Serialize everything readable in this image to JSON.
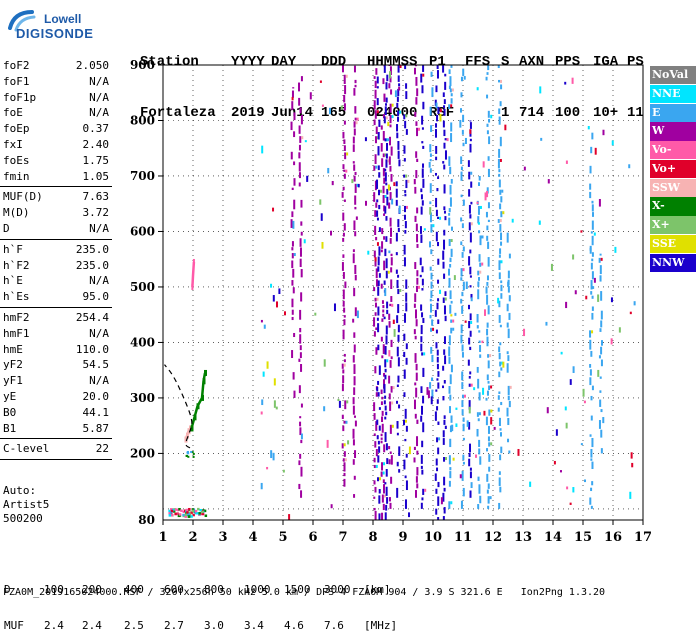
{
  "logo": {
    "line1": "Lowell",
    "line2": "DIGISONDE"
  },
  "header": {
    "row1": [
      "Station",
      "YYYY",
      "DAY",
      "DDD",
      "HHMMSS",
      "P1",
      "FFS",
      "S",
      "AXN",
      "PPS",
      "IGA",
      "PS"
    ],
    "row2": [
      "Fortaleza",
      "2019",
      "Jun14",
      "165",
      "024000",
      "RSF",
      "",
      "1",
      "714",
      "100",
      "10+",
      "11"
    ]
  },
  "params": [
    {
      "name": "foF2",
      "value": "2.050"
    },
    {
      "name": "foF1",
      "value": "N/A"
    },
    {
      "name": "foF1p",
      "value": "N/A"
    },
    {
      "name": "foE",
      "value": "N/A"
    },
    {
      "name": "foEp",
      "value": "0.37"
    },
    {
      "name": "fxI",
      "value": "2.40"
    },
    {
      "name": "foEs",
      "value": "1.75"
    },
    {
      "name": "fmin",
      "value": "1.05"
    },
    {
      "sep": true
    },
    {
      "name": "MUF(D)",
      "value": "7.63"
    },
    {
      "name": "M(D)",
      "value": "3.72"
    },
    {
      "name": "D",
      "value": "N/A"
    },
    {
      "sep": true
    },
    {
      "name": "h`F",
      "value": "235.0"
    },
    {
      "name": "h`F2",
      "value": "235.0"
    },
    {
      "name": "h`E",
      "value": "N/A"
    },
    {
      "name": "h`Es",
      "value": "95.0"
    },
    {
      "sep": true
    },
    {
      "name": "hmF2",
      "value": "254.4"
    },
    {
      "name": "hmF1",
      "value": "N/A"
    },
    {
      "name": "hmE",
      "value": "110.0"
    },
    {
      "name": "yF2",
      "value": "54.5"
    },
    {
      "name": "yF1",
      "value": "N/A"
    },
    {
      "name": "yE",
      "value": "20.0"
    },
    {
      "name": "B0",
      "value": "44.1"
    },
    {
      "name": "B1",
      "value": "5.87"
    },
    {
      "sep": true
    },
    {
      "name": "C-level",
      "value": "22"
    },
    {
      "sep": true
    }
  ],
  "auto": {
    "line1": "Auto:",
    "line2": "Artist5",
    "line3": "500200"
  },
  "legend": [
    {
      "label": "NoVal",
      "bg": "#808080",
      "fg": "#ffffff"
    },
    {
      "label": "NNE",
      "bg": "#00e5ff",
      "fg": "#ffffff"
    },
    {
      "label": "E",
      "bg": "#3aa6f0",
      "fg": "#ffffff"
    },
    {
      "label": "W",
      "bg": "#a000a0",
      "fg": "#ffffff"
    },
    {
      "label": "Vo-",
      "bg": "#ff5aa8",
      "fg": "#ffffff"
    },
    {
      "label": "Vo+",
      "bg": "#e0002a",
      "fg": "#ffffff"
    },
    {
      "label": "SSW",
      "bg": "#f7b3b3",
      "fg": "#ffffff"
    },
    {
      "label": "X-",
      "bg": "#008000",
      "fg": "#ffffff"
    },
    {
      "label": "X+",
      "bg": "#7dc46a",
      "fg": "#ffffff"
    },
    {
      "label": "SSE",
      "bg": "#e0e000",
      "fg": "#ffffff"
    },
    {
      "label": "NNW",
      "bg": "#1a00cc",
      "fg": "#ffffff"
    }
  ],
  "dtable": {
    "d_label": "D",
    "d_values": [
      "100",
      "200",
      "400",
      "600",
      "800",
      "1000",
      "1500",
      "3000",
      "[km]"
    ],
    "muf_label": "MUF",
    "muf_values": [
      "2.4",
      "2.4",
      "2.5",
      "2.7",
      "3.0",
      "3.4",
      "4.6",
      "7.6",
      "[MHz]"
    ]
  },
  "footer": "FZA0M_2019165024000.RSF / 320fx256h 50 kHz 5.0 km / DPS-4 FZA0M 904 / 3.9 S 321.6 E   Ion2Png 1.3.20",
  "chart_data": {
    "type": "scatter",
    "title": "",
    "xlabel": "",
    "ylabel": "",
    "xlim": [
      1,
      17
    ],
    "ylim": [
      80,
      900
    ],
    "x_ticks": [
      1,
      2,
      3,
      4,
      5,
      6,
      7,
      8,
      9,
      10,
      11,
      12,
      13,
      14,
      15,
      16,
      17
    ],
    "y_ticks": [
      200,
      300,
      400,
      500,
      600,
      700,
      800,
      900
    ],
    "y_min_label": 80,
    "grid": true,
    "legend_position": "right",
    "es_trace": {
      "series": "Vo-",
      "points": [
        [
          1.98,
          500
        ],
        [
          2.0,
          520
        ],
        [
          2.03,
          545
        ]
      ]
    },
    "f_trace_o": {
      "series": "SSW",
      "points": [
        [
          1.75,
          225
        ],
        [
          1.8,
          232
        ],
        [
          1.85,
          240
        ],
        [
          1.9,
          245
        ]
      ]
    },
    "f_trace_x": {
      "series": "X-",
      "points": [
        [
          1.95,
          245
        ],
        [
          2.05,
          265
        ],
        [
          2.15,
          285
        ],
        [
          2.3,
          300
        ],
        [
          2.35,
          330
        ],
        [
          2.4,
          345
        ]
      ]
    },
    "profile_curve": {
      "points": [
        [
          1.9,
          210
        ],
        [
          1.72,
          215
        ],
        [
          1.9,
          240
        ],
        [
          2.0,
          258
        ],
        [
          1.7,
          300
        ],
        [
          1.35,
          340
        ],
        [
          1.05,
          360
        ]
      ]
    },
    "e_layer_echoes": {
      "x_range": [
        1.15,
        2.4
      ],
      "height": 95
    },
    "vertical_bands": [
      {
        "series": "W",
        "x": 5.3,
        "h": [
          300,
          860
        ]
      },
      {
        "series": "W",
        "x": 5.55,
        "h": [
          120,
          880
        ]
      },
      {
        "series": "W",
        "x": 7.0,
        "h": [
          140,
          900
        ]
      },
      {
        "series": "W",
        "x": 7.35,
        "h": [
          120,
          900
        ]
      },
      {
        "series": "W",
        "x": 8.05,
        "h": [
          80,
          900
        ]
      },
      {
        "series": "NNW",
        "x": 8.15,
        "h": [
          80,
          900
        ]
      },
      {
        "series": "W",
        "x": 8.3,
        "h": [
          80,
          900
        ]
      },
      {
        "series": "NNW",
        "x": 8.4,
        "h": [
          80,
          900
        ]
      },
      {
        "series": "W",
        "x": 8.55,
        "h": [
          100,
          900
        ]
      },
      {
        "series": "NNW",
        "x": 8.8,
        "h": [
          120,
          900
        ]
      },
      {
        "series": "NNW",
        "x": 9.05,
        "h": [
          100,
          900
        ]
      },
      {
        "series": "W",
        "x": 9.4,
        "h": [
          120,
          900
        ]
      },
      {
        "series": "NNW",
        "x": 9.6,
        "h": [
          100,
          900
        ]
      },
      {
        "series": "E",
        "x": 9.9,
        "h": [
          300,
          900
        ]
      },
      {
        "series": "NNW",
        "x": 10.1,
        "h": [
          80,
          900
        ]
      },
      {
        "series": "NNW",
        "x": 10.35,
        "h": [
          80,
          900
        ]
      },
      {
        "series": "E",
        "x": 10.55,
        "h": [
          100,
          900
        ]
      },
      {
        "series": "E",
        "x": 10.95,
        "h": [
          100,
          900
        ]
      },
      {
        "series": "NNW",
        "x": 11.2,
        "h": [
          120,
          800
        ]
      },
      {
        "series": "E",
        "x": 11.5,
        "h": [
          100,
          700
        ]
      },
      {
        "series": "E",
        "x": 11.8,
        "h": [
          100,
          900
        ]
      },
      {
        "series": "E",
        "x": 12.2,
        "h": [
          100,
          900
        ]
      },
      {
        "series": "E",
        "x": 12.5,
        "h": [
          200,
          600
        ]
      },
      {
        "series": "E",
        "x": 15.25,
        "h": [
          100,
          780
        ]
      },
      {
        "series": "E",
        "x": 15.55,
        "h": [
          200,
          560
        ]
      }
    ]
  }
}
